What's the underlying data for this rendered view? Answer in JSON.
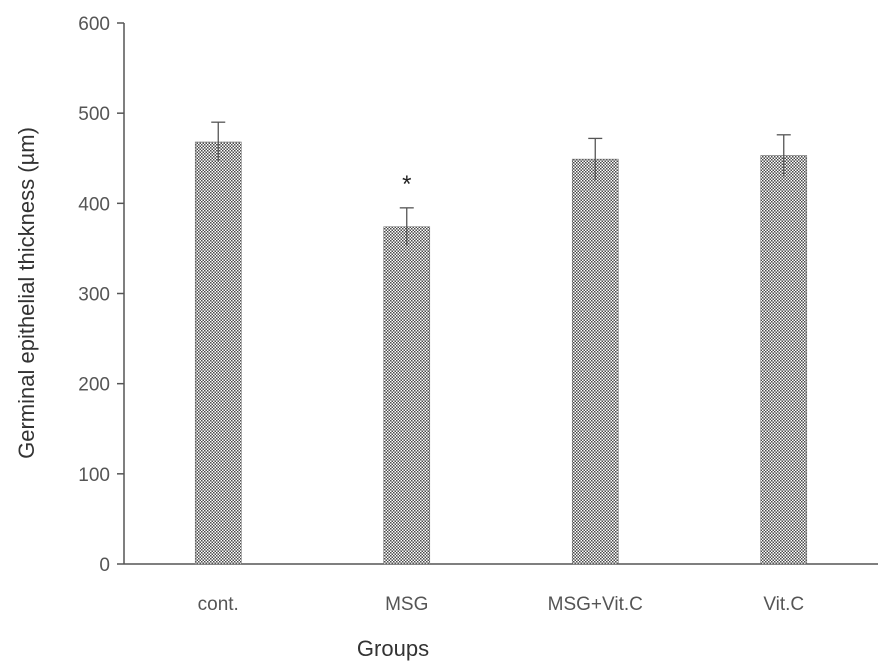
{
  "chart_data": {
    "type": "bar",
    "categories": [
      "cont.",
      "MSG",
      "MSG+Vit.C",
      "Vit.C"
    ],
    "values": [
      468,
      374,
      449,
      453
    ],
    "errors": [
      22,
      21,
      23,
      23
    ],
    "annotations": [
      "",
      "*",
      "",
      ""
    ],
    "xlabel": "Groups",
    "ylabel": "Germinal epithelial thickness (µm)",
    "ylim": [
      0,
      600
    ],
    "yticks": [
      0,
      100,
      200,
      300,
      400,
      500,
      600
    ],
    "grid": false,
    "legend": "none",
    "bar_color": "#6b6b6b"
  }
}
